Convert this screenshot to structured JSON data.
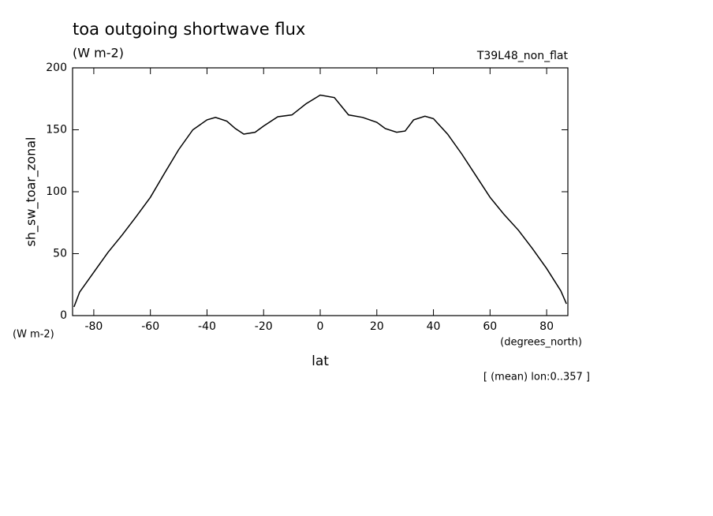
{
  "chart_data": {
    "type": "line",
    "title": "toa outgoing shortwave flux",
    "subtitle": "(W m-2)",
    "dataset_label": "T39L48_non_flat",
    "y_label": "sh_sw_toar_zonal",
    "y_units": "(W m-2)",
    "x_label": "lat",
    "x_units": "(degrees_north)",
    "footnote": "[ (mean) lon:0..357 ]",
    "x": [
      -87,
      -85,
      -80,
      -75,
      -70,
      -65,
      -60,
      -55,
      -50,
      -45,
      -40,
      -37,
      -33,
      -30,
      -27,
      -23,
      -20,
      -15,
      -10,
      -5,
      0,
      5,
      10,
      15,
      20,
      23,
      27,
      30,
      33,
      37,
      40,
      45,
      50,
      55,
      60,
      65,
      70,
      75,
      80,
      85,
      87
    ],
    "series": [
      {
        "color": "#000000",
        "values": [
          7,
          19,
          35,
          51,
          65,
          80,
          95.5,
          115,
          134,
          150,
          158,
          160,
          157,
          151,
          146.5,
          148,
          153,
          160.5,
          162,
          171,
          178,
          176,
          162,
          160,
          156,
          151,
          148,
          149,
          158,
          161,
          159,
          146.5,
          130.5,
          113,
          95.5,
          81.5,
          69,
          54,
          38,
          20,
          9.5
        ]
      }
    ],
    "xlim": [
      -87.5,
      87.5
    ],
    "ylim": [
      0,
      200
    ],
    "xticks": [
      -80,
      -60,
      -40,
      -20,
      0,
      20,
      40,
      60,
      80
    ],
    "yticks": [
      0,
      50,
      100,
      150,
      200
    ]
  }
}
